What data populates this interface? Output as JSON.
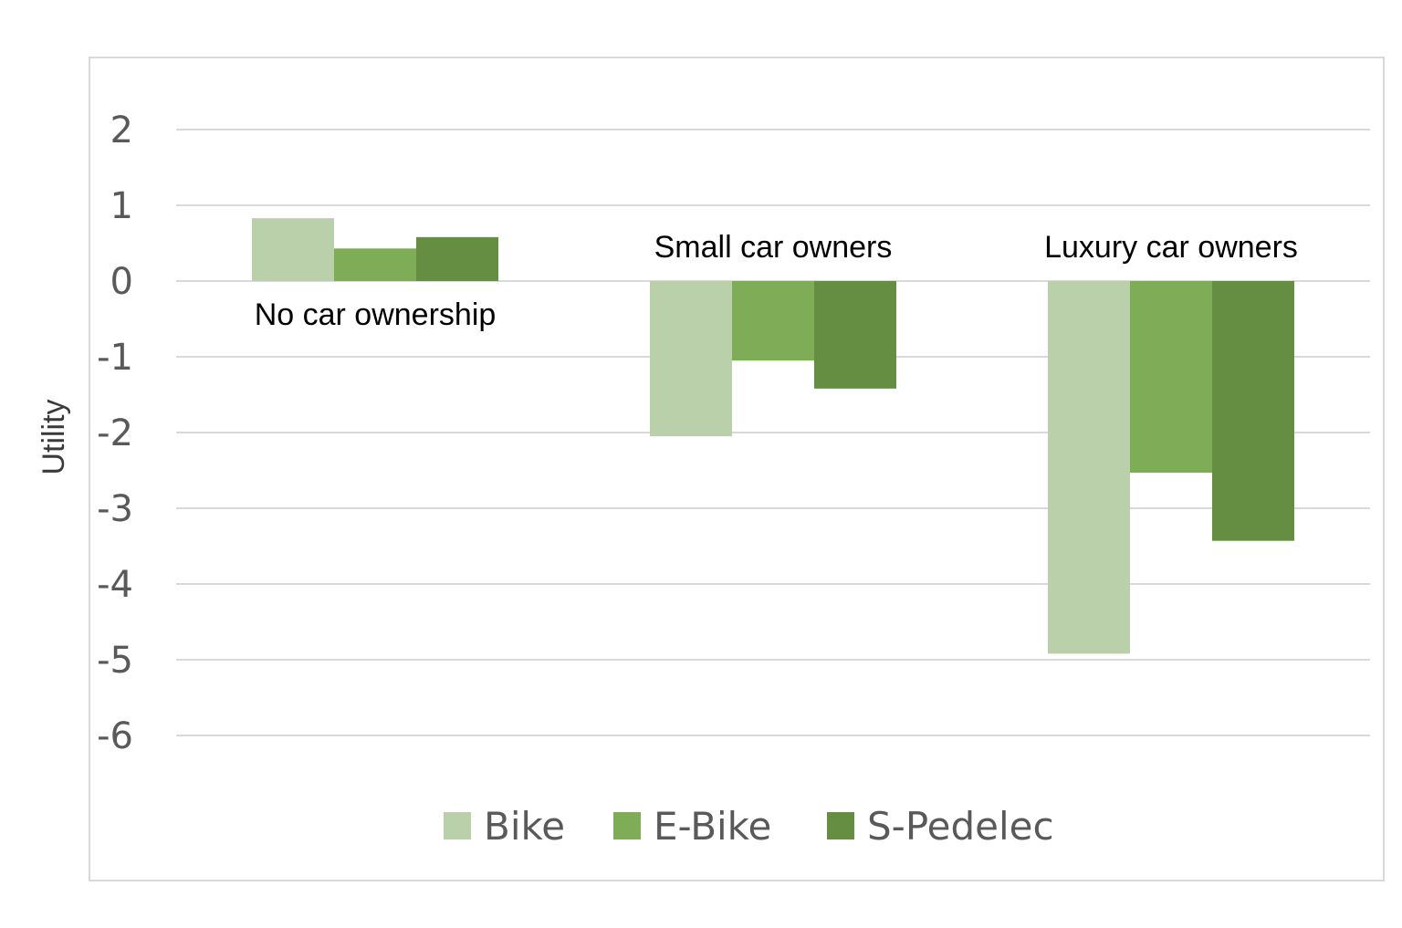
{
  "chart_data": {
    "type": "bar",
    "title": "",
    "xlabel": "",
    "ylabel": "Utility",
    "ylim": [
      -6,
      2
    ],
    "yticks": [
      2,
      1,
      0,
      -1,
      -2,
      -3,
      -4,
      -5,
      -6
    ],
    "grid": true,
    "legend_position": "bottom",
    "categories": [
      "No car ownership",
      "Small car owners",
      "Luxury car owners"
    ],
    "series": [
      {
        "name": "Bike",
        "color": "#b9d0ab",
        "values": [
          0.83,
          -2.05,
          -4.92
        ]
      },
      {
        "name": "E-Bike",
        "color": "#7fac56",
        "values": [
          0.43,
          -1.05,
          -2.53
        ]
      },
      {
        "name": "S-Pedelec",
        "color": "#668e43",
        "values": [
          0.58,
          -1.42,
          -3.43
        ]
      }
    ]
  }
}
